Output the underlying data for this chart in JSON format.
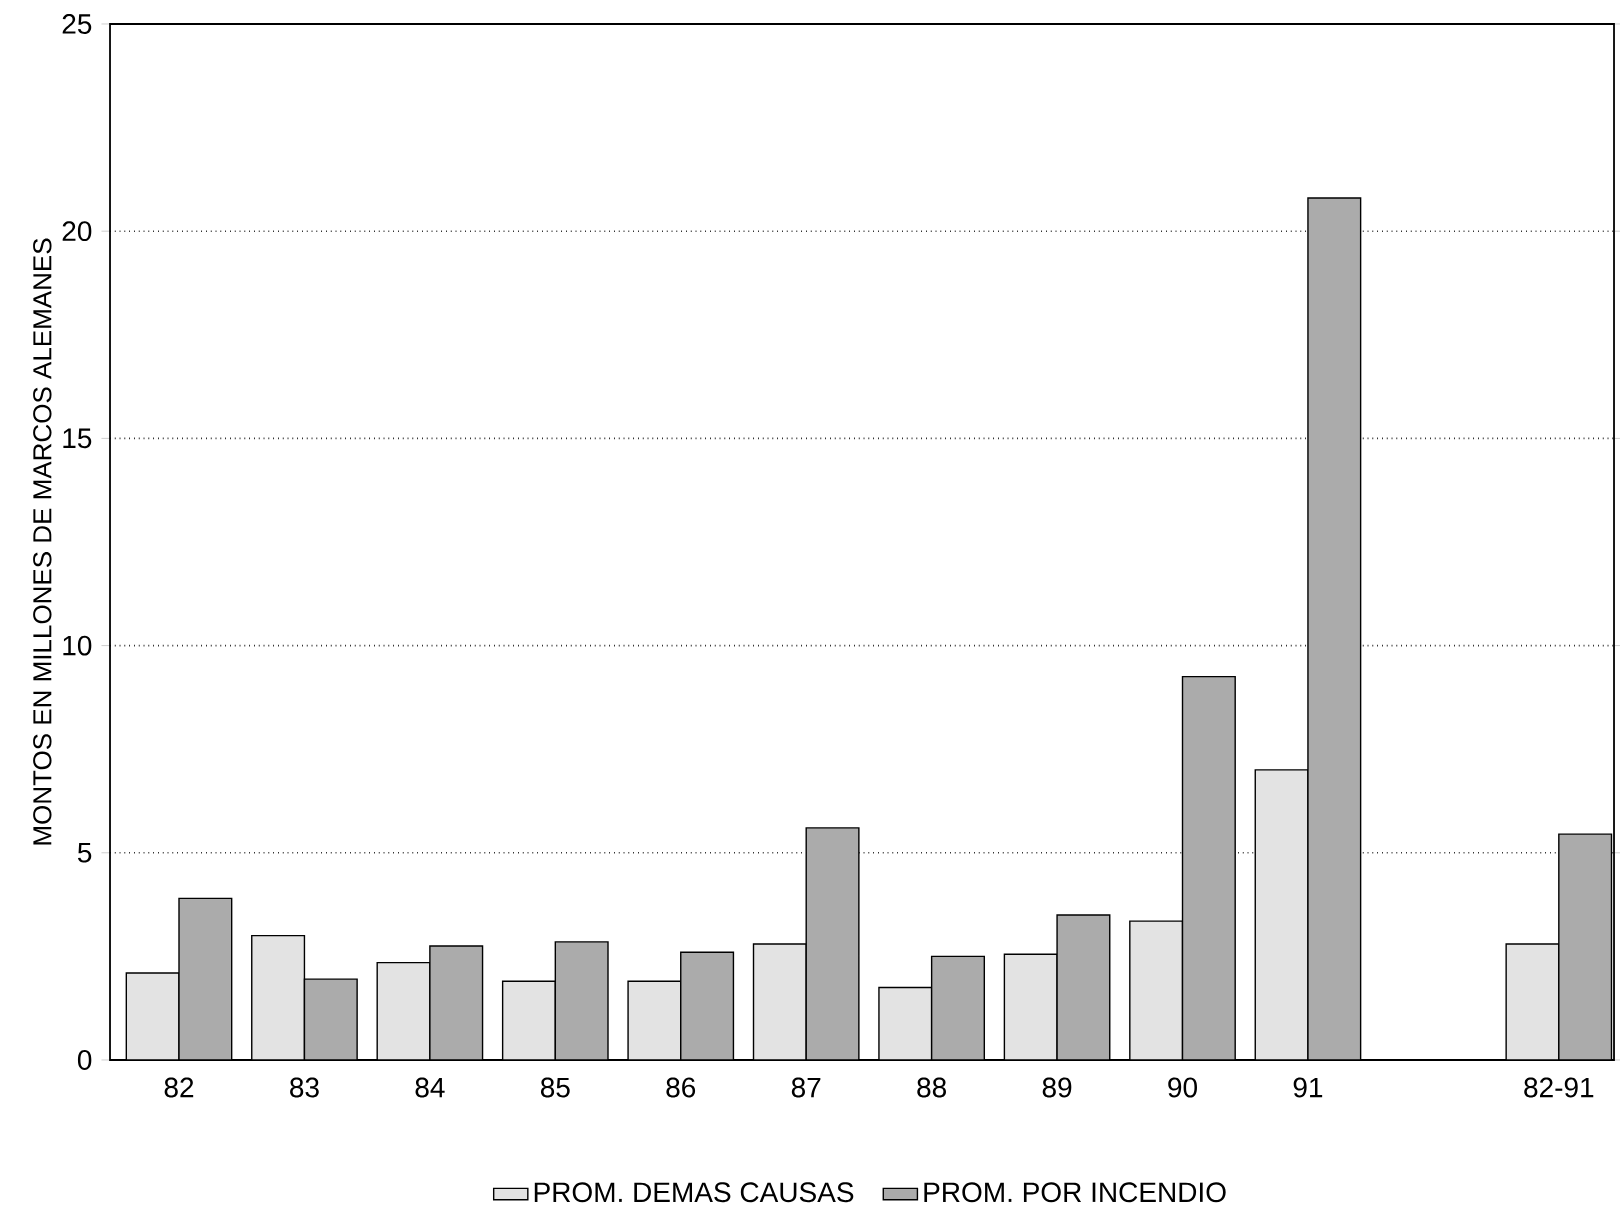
{
  "chart_data": {
    "type": "bar",
    "ylabel": "MONTOS EN MILLONES DE MARCOS ALEMANES",
    "categories": [
      "82",
      "83",
      "84",
      "85",
      "86",
      "87",
      "88",
      "89",
      "90",
      "91",
      null,
      "82-91"
    ],
    "series": [
      {
        "name": "PROM. DEMAS CAUSAS",
        "color": "#e3e3e3",
        "values": [
          2.1,
          3.0,
          2.35,
          1.9,
          1.9,
          2.8,
          1.75,
          2.55,
          3.35,
          7.0,
          null,
          2.8
        ]
      },
      {
        "name": "PROM. POR INCENDIO",
        "color": "#ababab",
        "values": [
          3.9,
          1.95,
          2.75,
          2.85,
          2.6,
          5.6,
          2.5,
          3.5,
          9.25,
          20.8,
          null,
          5.45
        ]
      }
    ],
    "ylim": [
      0,
      25
    ],
    "yticks": [
      0,
      5,
      10,
      15,
      20,
      25
    ],
    "grid": "y",
    "legend": "bottom"
  }
}
